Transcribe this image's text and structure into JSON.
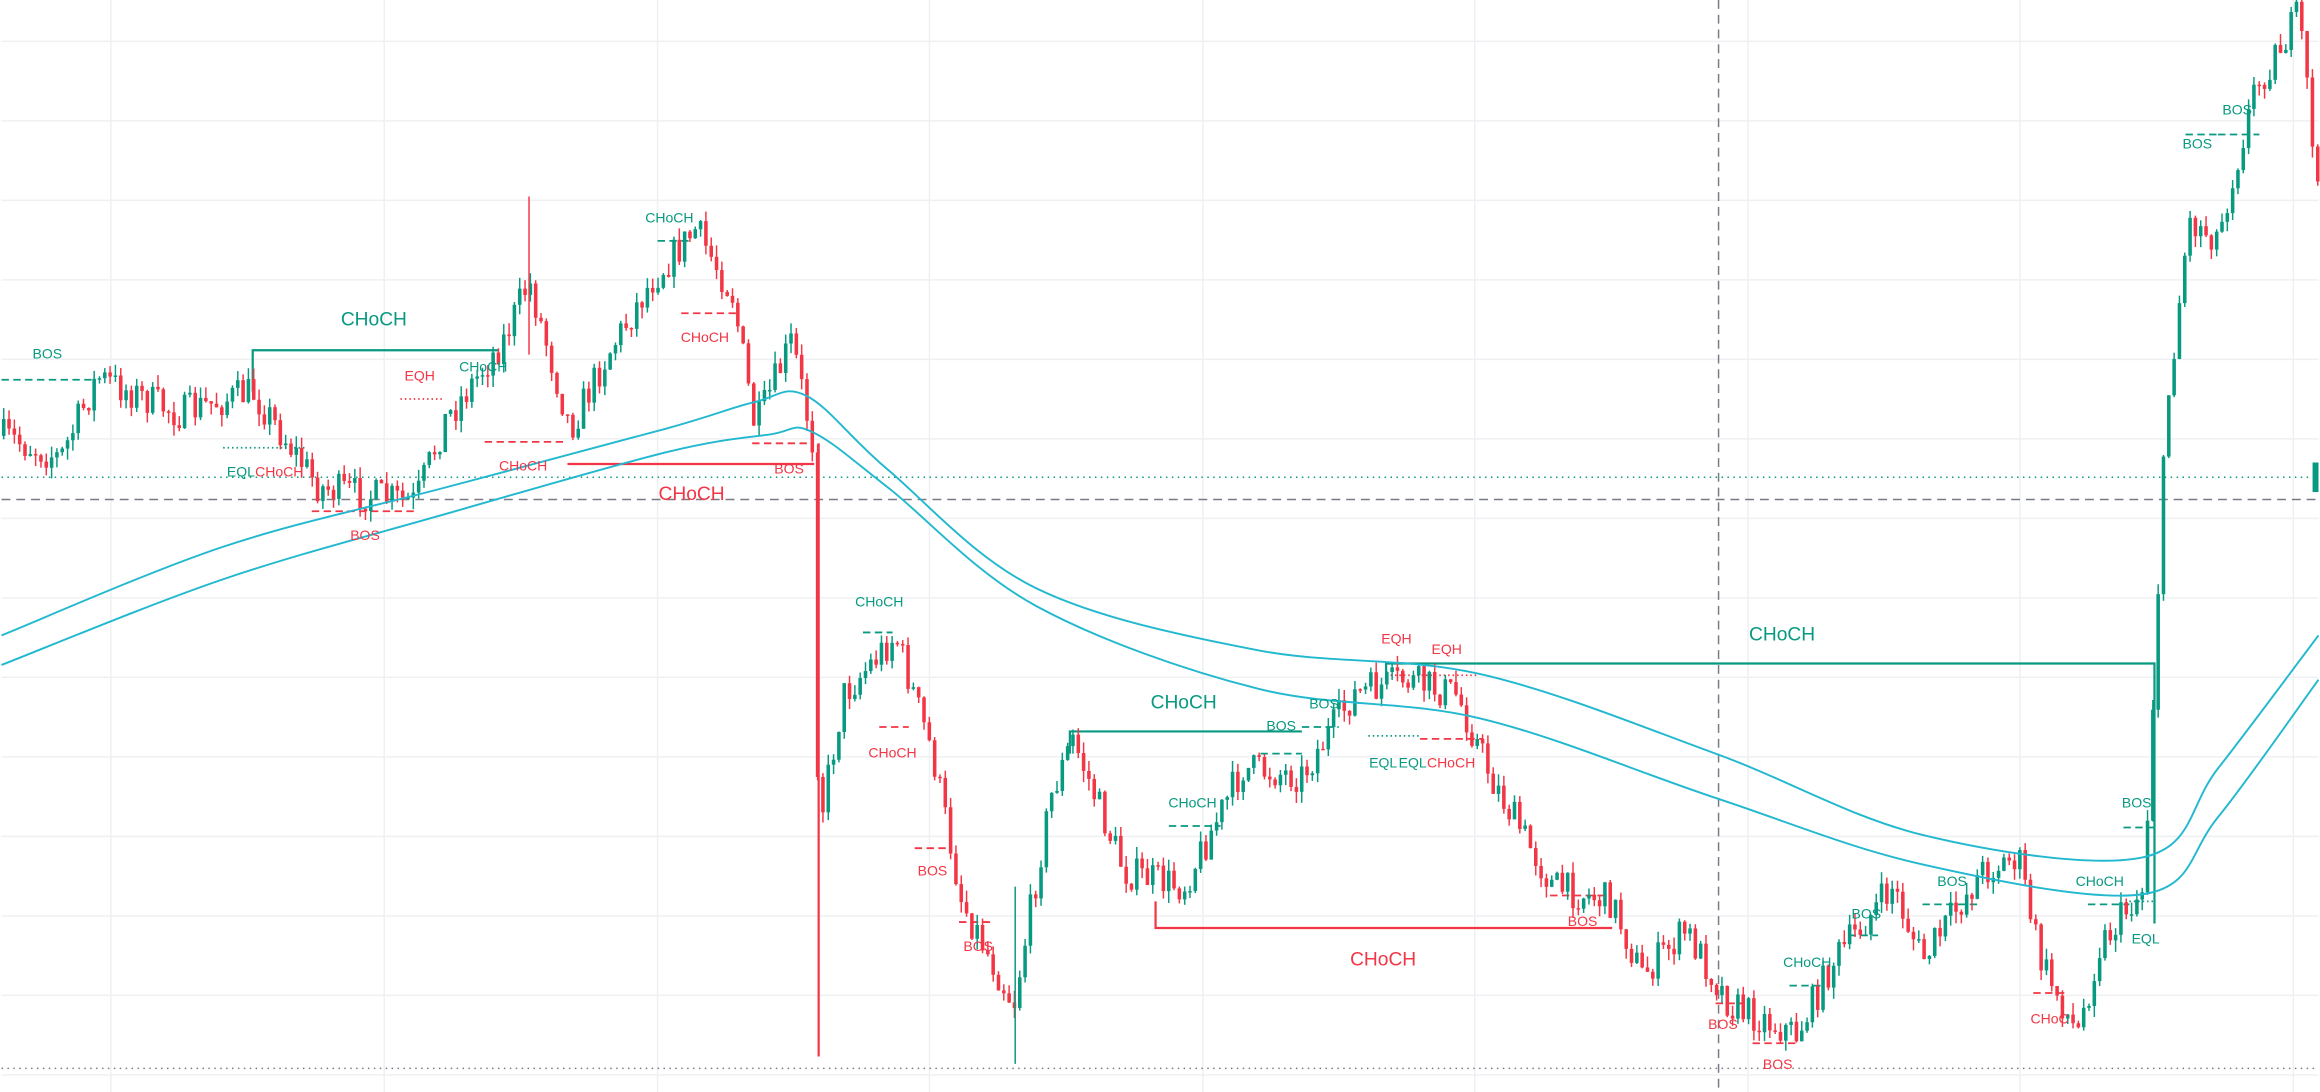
{
  "annotations": [
    {
      "text": "BOS",
      "color": "#089981"
    },
    {
      "text": "CHoCH",
      "color": "#089981"
    },
    {
      "text": "EQH",
      "color": "#f23645"
    },
    {
      "text": "CHoCH",
      "color": "#089981"
    },
    {
      "text": "CHoCH",
      "color": "#089981"
    },
    {
      "text": "CHoCH",
      "color": "#f23645"
    },
    {
      "text": "EQL",
      "color": "#089981"
    },
    {
      "text": "CHoCH",
      "color": "#f23645"
    },
    {
      "text": "CHoCH",
      "color": "#f23645"
    },
    {
      "text": "BOS",
      "color": "#f23645"
    },
    {
      "text": "CHoCH",
      "color": "#f23645"
    },
    {
      "text": "BOS",
      "color": "#f23645"
    },
    {
      "text": "CHoCH",
      "color": "#089981"
    },
    {
      "text": "CHoCH",
      "color": "#f23645"
    },
    {
      "text": "CHoCH",
      "color": "#089981"
    },
    {
      "text": "BOS",
      "color": "#089981"
    },
    {
      "text": "BOS",
      "color": "#089981"
    },
    {
      "text": "EQH",
      "color": "#f23645"
    },
    {
      "text": "EQH",
      "color": "#f23645"
    },
    {
      "text": "CHoCH",
      "color": "#089981"
    },
    {
      "text": "EQL",
      "color": "#089981"
    },
    {
      "text": "EQL",
      "color": "#089981"
    },
    {
      "text": "CHoCH",
      "color": "#f23645"
    },
    {
      "text": "CHoCH",
      "color": "#089981"
    },
    {
      "text": "BOS",
      "color": "#f23645"
    },
    {
      "text": "BOS",
      "color": "#f23645"
    },
    {
      "text": "BOS",
      "color": "#f23645"
    },
    {
      "text": "CHoCH",
      "color": "#f23645"
    },
    {
      "text": "CHoCH",
      "color": "#089981"
    },
    {
      "text": "BOS",
      "color": "#089981"
    },
    {
      "text": "BOS",
      "color": "#089981"
    },
    {
      "text": "BOS",
      "color": "#f23645"
    },
    {
      "text": "BOS",
      "color": "#f23645"
    },
    {
      "text": "CHoC",
      "color": "#f23645"
    },
    {
      "text": "CHoCH",
      "color": "#089981"
    },
    {
      "text": "BOS",
      "color": "#089981"
    },
    {
      "text": "EQL",
      "color": "#089981"
    },
    {
      "text": "BOS",
      "color": "#089981"
    },
    {
      "text": "BOS",
      "color": "#089981"
    }
  ]
}
